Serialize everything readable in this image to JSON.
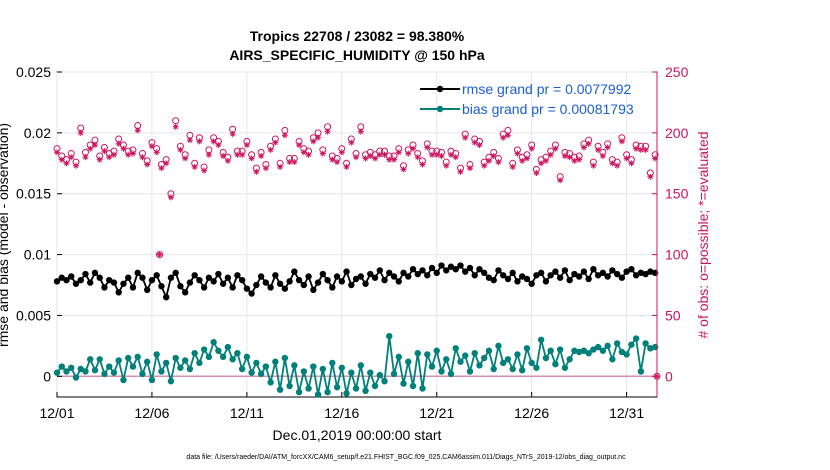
{
  "chart_data": {
    "type": "line",
    "title_line1": "Tropics 22708 / 23082 = 98.380%",
    "title_line2": "AIRS_SPECIFIC_HUMIDITY @ 150 hPa",
    "xlabel": "Dec.01,2019 00:00:00 start",
    "ylabel_left": "rmse and bias (model - observation)",
    "ylabel_right": "# of obs: o=possible; *=evaluated",
    "x_ticks": [
      "12/01",
      "12/06",
      "12/11",
      "12/16",
      "12/21",
      "12/26",
      "12/31"
    ],
    "x_range_days": [
      0,
      31.6
    ],
    "y_ticks_left": [
      "0",
      "0.005",
      "0.01",
      "0.015",
      "0.02",
      "0.025"
    ],
    "y_range_left": [
      -0.0017,
      0.025
    ],
    "y_ticks_right": [
      "0",
      "50",
      "100",
      "150",
      "200",
      "250"
    ],
    "y_range_right": [
      -17,
      250
    ],
    "footer": "data file: /Users/raeder/DAI/ATM_forcXX/CAM6_setup/f.e21.FHIST_BGC.f09_025.CAM6assim.011/Diags_NTrS_2019-12/obs_diag_output.nc",
    "legend": {
      "rmse_label": "rmse grand pr = 0.0077992",
      "bias_label": "bias grand pr = 0.00081793",
      "position": "top-right"
    },
    "colors": {
      "rmse": "#000000",
      "bias": "#00807a",
      "obs": "#cc1560",
      "legend_text": "#1a5fd0",
      "zero_line": "#d98fb5"
    },
    "x_days": [
      0,
      0.25,
      0.5,
      0.75,
      1,
      1.25,
      1.5,
      1.75,
      2,
      2.25,
      2.5,
      2.75,
      3,
      3.25,
      3.5,
      3.75,
      4,
      4.25,
      4.5,
      4.75,
      5,
      5.25,
      5.5,
      5.75,
      6,
      6.25,
      6.5,
      6.75,
      7,
      7.25,
      7.5,
      7.75,
      8,
      8.25,
      8.5,
      8.75,
      9,
      9.25,
      9.5,
      9.75,
      10,
      10.25,
      10.5,
      10.75,
      11,
      11.25,
      11.5,
      11.75,
      12,
      12.25,
      12.5,
      12.75,
      13,
      13.25,
      13.5,
      13.75,
      14,
      14.25,
      14.5,
      14.75,
      15,
      15.25,
      15.5,
      15.75,
      16,
      16.25,
      16.5,
      16.75,
      17,
      17.25,
      17.5,
      17.75,
      18,
      18.25,
      18.5,
      18.75,
      19,
      19.25,
      19.5,
      19.75,
      20,
      20.25,
      20.5,
      20.75,
      21,
      21.25,
      21.5,
      21.75,
      22,
      22.25,
      22.5,
      22.75,
      23,
      23.25,
      23.5,
      23.75,
      24,
      24.25,
      24.5,
      24.75,
      25,
      25.25,
      25.5,
      25.75,
      26,
      26.25,
      26.5,
      26.75,
      27,
      27.25,
      27.5,
      27.75,
      28,
      28.25,
      28.5,
      28.75,
      29,
      29.25,
      29.5,
      29.75,
      30,
      30.25,
      30.5,
      30.75,
      31,
      31.25,
      31.5
    ],
    "rmse": [
      0.0078,
      0.0081,
      0.0079,
      0.0082,
      0.0076,
      0.0079,
      0.0084,
      0.0077,
      0.0085,
      0.0081,
      0.0073,
      0.0079,
      0.0077,
      0.0069,
      0.0076,
      0.0081,
      0.0073,
      0.0085,
      0.0081,
      0.0071,
      0.0079,
      0.0083,
      0.0074,
      0.0065,
      0.0081,
      0.0085,
      0.0074,
      0.0069,
      0.0077,
      0.0083,
      0.0079,
      0.0073,
      0.0081,
      0.0078,
      0.0084,
      0.0076,
      0.0081,
      0.0073,
      0.0083,
      0.0079,
      0.0072,
      0.0068,
      0.0075,
      0.0082,
      0.0077,
      0.0073,
      0.0083,
      0.0076,
      0.0072,
      0.0078,
      0.0086,
      0.0079,
      0.0075,
      0.0082,
      0.0071,
      0.0077,
      0.0084,
      0.0079,
      0.0073,
      0.0082,
      0.0078,
      0.0086,
      0.0075,
      0.008,
      0.0082,
      0.0076,
      0.0084,
      0.0081,
      0.0087,
      0.0079,
      0.0085,
      0.0082,
      0.0078,
      0.0085,
      0.0082,
      0.0088,
      0.0084,
      0.0087,
      0.0083,
      0.0089,
      0.0085,
      0.0091,
      0.0087,
      0.009,
      0.0088,
      0.0091,
      0.0086,
      0.0089,
      0.0083,
      0.0088,
      0.0085,
      0.0081,
      0.0079,
      0.0087,
      0.0083,
      0.008,
      0.0085,
      0.0078,
      0.0082,
      0.008,
      0.0076,
      0.0083,
      0.0085,
      0.0078,
      0.0083,
      0.0086,
      0.0081,
      0.0087,
      0.0079,
      0.0084,
      0.0082,
      0.0086,
      0.008,
      0.0088,
      0.0083,
      0.0085,
      0.0082,
      0.0087,
      0.0084,
      0.0081,
      0.0086,
      0.0088,
      0.0083,
      0.0085,
      0.0084,
      0.0086,
      0.0085
    ],
    "bias": [
      0.0003,
      0.0008,
      0.0004,
      0.0007,
      -0.0001,
      0.0006,
      0.0004,
      0.0014,
      0.0005,
      0.0014,
      0.0002,
      0.0008,
      0.0003,
      0.0013,
      -0.0003,
      0.0015,
      0.0008,
      0.0016,
      0.0002,
      0.0012,
      -0.0003,
      0.0018,
      0.0004,
      0.0011,
      -0.0004,
      0.0015,
      0.0007,
      0.0013,
      0.0006,
      0.0019,
      0.0011,
      0.0022,
      0.0016,
      0.0028,
      0.0021,
      0.0016,
      0.0024,
      0.0014,
      0.0019,
      0.0006,
      0.0016,
      0.0003,
      0.0011,
      0.0002,
      0.0008,
      -0.0005,
      0.0012,
      -0.0011,
      0.0015,
      -0.0008,
      0.0009,
      -0.0013,
      0.0004,
      -0.001,
      0.0008,
      -0.0015,
      0.0006,
      -0.0013,
      0.0011,
      -0.0009,
      0.0007,
      -0.0014,
      0.0003,
      -0.001,
      0.0009,
      -0.0012,
      0.0003,
      -0.0008,
      0.0001,
      -0.0004,
      0.0033,
      0.0002,
      0.0016,
      -0.0006,
      0.0012,
      -0.0008,
      0.0019,
      -0.001,
      0.0018,
      0.0008,
      0.0021,
      0.0004,
      0.0014,
      0.0002,
      0.0023,
      0.0012,
      0.0017,
      0.0004,
      0.0019,
      0.0009,
      0.0015,
      0.0021,
      0.0006,
      0.0025,
      0.0011,
      0.0014,
      0.0006,
      0.0018,
      0.0005,
      0.0023,
      0.0011,
      0.0007,
      0.003,
      0.0015,
      0.0021,
      0.001,
      0.0022,
      0.0007,
      0.0014,
      0.0021,
      0.002,
      0.0021,
      0.0019,
      0.0022,
      0.0024,
      0.0021,
      0.0025,
      0.0014,
      0.0027,
      0.002,
      0.0018,
      0.0026,
      0.0031,
      0.0004,
      0.0027,
      0.0023,
      0.0024
    ],
    "obs_possible": [
      187,
      181,
      178,
      183,
      176,
      204,
      184,
      190,
      194,
      181,
      188,
      183,
      185,
      195,
      190,
      185,
      186,
      206,
      183,
      177,
      192,
      187,
      174,
      178,
      150,
      210,
      189,
      182,
      198,
      175,
      196,
      172,
      186,
      196,
      193,
      184,
      180,
      203,
      185,
      185,
      193,
      182,
      171,
      184,
      174,
      189,
      195,
      175,
      202,
      179,
      179,
      193,
      187,
      185,
      196,
      200,
      186,
      205,
      181,
      179,
      187,
      175,
      195,
      183,
      205,
      182,
      184,
      182,
      185,
      185,
      181,
      181,
      187,
      173,
      186,
      190,
      183,
      177,
      191,
      185,
      185,
      184,
      176,
      185,
      183,
      171,
      199,
      174,
      195,
      193,
      176,
      180,
      184,
      179,
      199,
      202,
      175,
      186,
      180,
      182,
      190,
      170,
      178,
      180,
      185,
      190,
      164,
      184,
      183,
      180,
      181,
      191,
      194,
      176,
      189,
      184,
      191,
      178,
      176,
      196,
      182,
      178,
      190,
      189,
      189,
      167,
      182
    ],
    "obs_evaluated": [
      184,
      178,
      175,
      180,
      173,
      200,
      180,
      187,
      190,
      178,
      185,
      180,
      182,
      191,
      187,
      182,
      183,
      202,
      180,
      174,
      189,
      184,
      171,
      175,
      147,
      205,
      186,
      179,
      194,
      172,
      193,
      169,
      182,
      193,
      190,
      181,
      177,
      199,
      182,
      182,
      190,
      179,
      168,
      181,
      171,
      186,
      192,
      172,
      198,
      176,
      176,
      190,
      184,
      182,
      193,
      196,
      183,
      201,
      178,
      176,
      184,
      172,
      192,
      180,
      201,
      179,
      181,
      179,
      182,
      182,
      178,
      178,
      184,
      170,
      183,
      187,
      180,
      174,
      188,
      182,
      182,
      181,
      173,
      182,
      180,
      168,
      196,
      171,
      192,
      190,
      173,
      177,
      181,
      176,
      196,
      198,
      172,
      183,
      177,
      179,
      187,
      167,
      175,
      177,
      182,
      187,
      161,
      181,
      180,
      177,
      178,
      188,
      191,
      173,
      186,
      181,
      188,
      175,
      173,
      193,
      179,
      175,
      187,
      186,
      186,
      164,
      179
    ],
    "outliers": [
      {
        "x": 5.4,
        "possible": 100,
        "evaluated": 100
      },
      {
        "x": 31.6,
        "possible": 0,
        "evaluated": 0
      }
    ]
  }
}
